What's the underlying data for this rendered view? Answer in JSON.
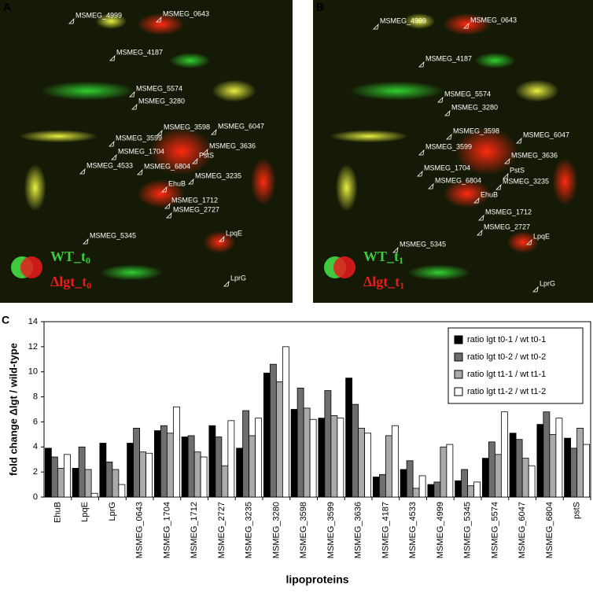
{
  "gels": [
    {
      "letter": "A",
      "spots": [
        "MSMEG_4999",
        "MSMEG_0643",
        "MSMEG_4187",
        "MSMEG_5574",
        "MSMEG_3280",
        "MSMEG_3598",
        "MSMEG_6047",
        "MSMEG_3599",
        "MSMEG_3636",
        "MSMEG_1704",
        "PstS",
        "MSMEG_4533",
        "MSMEG_6804",
        "MSMEG_3235",
        "EhuB",
        "MSMEG_1712",
        "MSMEG_2727",
        "MSMEG_5345",
        "LpqE",
        "LprG"
      ],
      "wt": {
        "text": "WT_t",
        "sub": "0"
      },
      "mutant": {
        "text": "Δlgt_t",
        "sub": "0"
      }
    },
    {
      "letter": "B",
      "spots": [
        "MSMEG_4999",
        "MSMEG_0643",
        "MSMEG_4187",
        "MSMEG_5574",
        "MSMEG_3280",
        "MSMEG_3598",
        "MSMEG_6047",
        "MSMEG_3599",
        "MSMEG_3636",
        "MSMEG_1704",
        "PstS",
        "MSMEG_6804",
        "MSMEG_3235",
        "EhuB",
        "MSMEG_1712",
        "MSMEG_2727",
        "LpqE",
        "MSMEG_5345",
        "LprG"
      ],
      "wt": {
        "text": "WT_t",
        "sub": "1"
      },
      "mutant": {
        "text": "Δlgt_t",
        "sub": "1"
      }
    }
  ],
  "chart_data": {
    "type": "bar",
    "panel_label": "C",
    "y_label": "fold change Δlgt / wild-type",
    "x_label": "lipoproteins",
    "categories": [
      "EhuB",
      "LpqE",
      "LprG",
      "MSMEG_0643",
      "MSMEG_1704",
      "MSMEG_1712",
      "MSMEG_2727",
      "MSMEG_3235",
      "MSMEG_3280",
      "MSMEG_3598",
      "MSMEG_3599",
      "MSMEG_3636",
      "MSMEG_4187",
      "MSMEG_4533",
      "MSMEG_4999",
      "MSMEG_5345",
      "MSMEG_5574",
      "MSMEG_6047",
      "MSMEG_6804",
      "pstS"
    ],
    "series": [
      {
        "name": "ratio lgt t0-1 / wt t0-1",
        "color": "#000000",
        "values": [
          3.9,
          2.3,
          4.3,
          4.3,
          5.3,
          4.8,
          5.7,
          3.9,
          9.9,
          7.0,
          6.3,
          9.5,
          1.6,
          2.2,
          1.0,
          1.3,
          3.1,
          5.1,
          5.8,
          4.7
        ]
      },
      {
        "name": "ratio lgt t0-2 / wt t0-2",
        "color": "#6e6e6e",
        "values": [
          3.2,
          4.0,
          2.8,
          5.5,
          5.7,
          4.9,
          4.8,
          6.9,
          10.6,
          8.7,
          8.5,
          7.4,
          1.8,
          2.9,
          1.2,
          2.2,
          4.4,
          4.6,
          6.8,
          3.9
        ]
      },
      {
        "name": "ratio lgt t1-1 / wt t1-1",
        "color": "#aaaaaa",
        "values": [
          2.3,
          2.2,
          2.2,
          3.6,
          5.1,
          3.6,
          2.5,
          4.9,
          9.2,
          7.1,
          6.5,
          5.5,
          4.9,
          0.7,
          4.0,
          0.9,
          3.4,
          3.1,
          5.0,
          5.5
        ]
      },
      {
        "name": "ratio lgt t1-2 / wt t1-2",
        "color": "#ffffff",
        "values": [
          3.4,
          0.3,
          1.0,
          3.5,
          7.2,
          3.2,
          6.1,
          6.3,
          12.0,
          6.2,
          6.3,
          5.1,
          5.7,
          1.7,
          4.2,
          1.2,
          6.8,
          2.5,
          6.3,
          4.2
        ]
      }
    ],
    "ylim": [
      0,
      14
    ],
    "yticks": [
      0,
      2,
      4,
      6,
      8,
      10,
      12,
      14
    ],
    "legend": "upper-right"
  }
}
